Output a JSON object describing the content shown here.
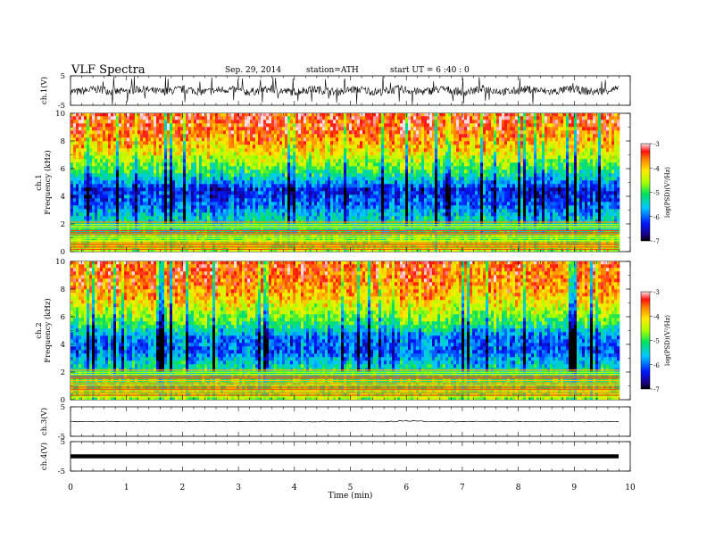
{
  "header": {
    "title": "VLF  Spectra",
    "date": "Sep. 29, 2014",
    "station": "station=ATH",
    "start": "start  UT  =   6  :40 : 0"
  },
  "chart_data": [
    {
      "type": "line",
      "panel": "ch1-waveform",
      "ylabel": "ch.1(V)",
      "ylim": [
        -5,
        5
      ],
      "yticks": [
        "5",
        "-5"
      ],
      "xlim": [
        0,
        10
      ],
      "data_extent_min": 9.8,
      "series": [
        {
          "amplitude_band": [
            -2.5,
            2.5
          ]
        }
      ]
    },
    {
      "type": "heatmap",
      "panel": "ch1-spectrogram",
      "ylabel": "ch.1\nFrequency  (kHz)",
      "ylim": [
        0,
        10
      ],
      "yticks": [
        "0",
        "2",
        "4",
        "6",
        "8",
        "10"
      ],
      "xlim": [
        0,
        10
      ],
      "data_extent_min": 9.8,
      "colorbar": {
        "label": "log(PSD)(V²/Hz)",
        "range": [
          -7,
          -3
        ],
        "ticks": [
          "-3",
          "-4",
          "-5",
          "-6",
          "-7"
        ]
      },
      "profile_khz": [
        0.5,
        1.5,
        2.5,
        3.5,
        4.5,
        5.5,
        6.5,
        7.5,
        8.5,
        9.5
      ],
      "profile_logpsd": [
        -4.5,
        -5.2,
        -5.5,
        -6.1,
        -6.3,
        -5.3,
        -4.6,
        -4.0,
        -3.6,
        -3.4
      ]
    },
    {
      "type": "heatmap",
      "panel": "ch2-spectrogram",
      "ylabel": "ch.2\nFrequency  (kHz)",
      "ylim": [
        0,
        10
      ],
      "yticks": [
        "0",
        "2",
        "4",
        "6",
        "8",
        "10"
      ],
      "xlim": [
        0,
        10
      ],
      "data_extent_min": 9.8,
      "colorbar": {
        "label": "log(PSD)(V²/Hz)",
        "range": [
          -7,
          -3
        ],
        "ticks": [
          "-3",
          "-4",
          "-5",
          "-6",
          "-7"
        ]
      },
      "profile_khz": [
        0.5,
        1.5,
        2.5,
        3.5,
        4.5,
        5.5,
        6.5,
        7.5,
        8.5,
        9.5
      ],
      "profile_logpsd": [
        -4.6,
        -5.0,
        -5.4,
        -6.0,
        -5.9,
        -5.0,
        -4.4,
        -3.9,
        -3.6,
        -3.5
      ]
    },
    {
      "type": "line",
      "panel": "ch3-waveform",
      "ylabel": "ch.3(V)",
      "ylim": [
        -5,
        5
      ],
      "yticks": [
        "5",
        "-5"
      ],
      "xlim": [
        0,
        10
      ],
      "data_extent_min": 9.8,
      "series": [
        {
          "level_v": 0
        }
      ]
    },
    {
      "type": "line",
      "panel": "ch4-waveform",
      "ylabel": "ch.4(V)",
      "ylim": [
        -5,
        5
      ],
      "yticks": [
        "5",
        "-5"
      ],
      "xlim": [
        0,
        10
      ],
      "xticks": [
        "0",
        "1",
        "2",
        "3",
        "4",
        "5",
        "6",
        "7",
        "8",
        "9",
        "10"
      ],
      "xlabel": "Time  (min)",
      "data_extent_min": 9.8,
      "series": [
        {
          "level_v": 0
        }
      ]
    }
  ]
}
